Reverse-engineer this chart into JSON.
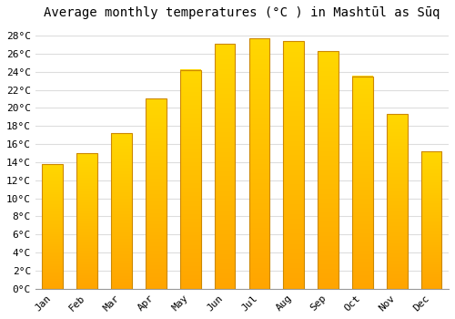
{
  "title": "Average monthly temperatures (°C ) in Mashtūl as Sūq",
  "months": [
    "Jan",
    "Feb",
    "Mar",
    "Apr",
    "May",
    "Jun",
    "Jul",
    "Aug",
    "Sep",
    "Oct",
    "Nov",
    "Dec"
  ],
  "temperatures": [
    13.8,
    15.0,
    17.2,
    21.0,
    24.2,
    27.1,
    27.7,
    27.4,
    26.3,
    23.5,
    19.3,
    15.2
  ],
  "bar_color_top": "#FFD700",
  "bar_color_bottom": "#FFA500",
  "bar_edge_color": "#CC8800",
  "background_color": "#FFFFFF",
  "grid_color": "#DDDDDD",
  "ylim": [
    0,
    29
  ],
  "ytick_step": 2,
  "title_fontsize": 10,
  "tick_fontsize": 8,
  "font_family": "monospace"
}
